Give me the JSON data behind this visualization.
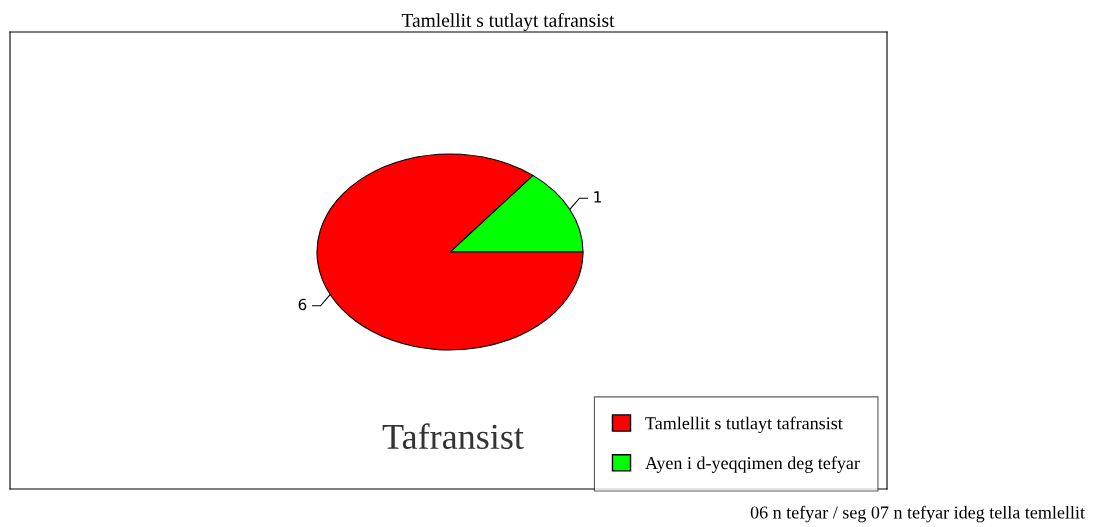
{
  "chart_data": {
    "type": "pie",
    "title": "Tamlellit s tutlayt tafransist",
    "categories": [
      "Tamlellit s tutlayt tafransist",
      "Ayen i d-yeqqimen deg tefyar"
    ],
    "values": [
      6,
      1
    ],
    "colors": [
      "#ff0000",
      "#00ff00"
    ],
    "data_labels": true,
    "legend": "bottom right",
    "annotations": [
      "Tafransist",
      "06 n tefyar / seg 07 n tefyar ideg tella temlellit"
    ]
  }
}
